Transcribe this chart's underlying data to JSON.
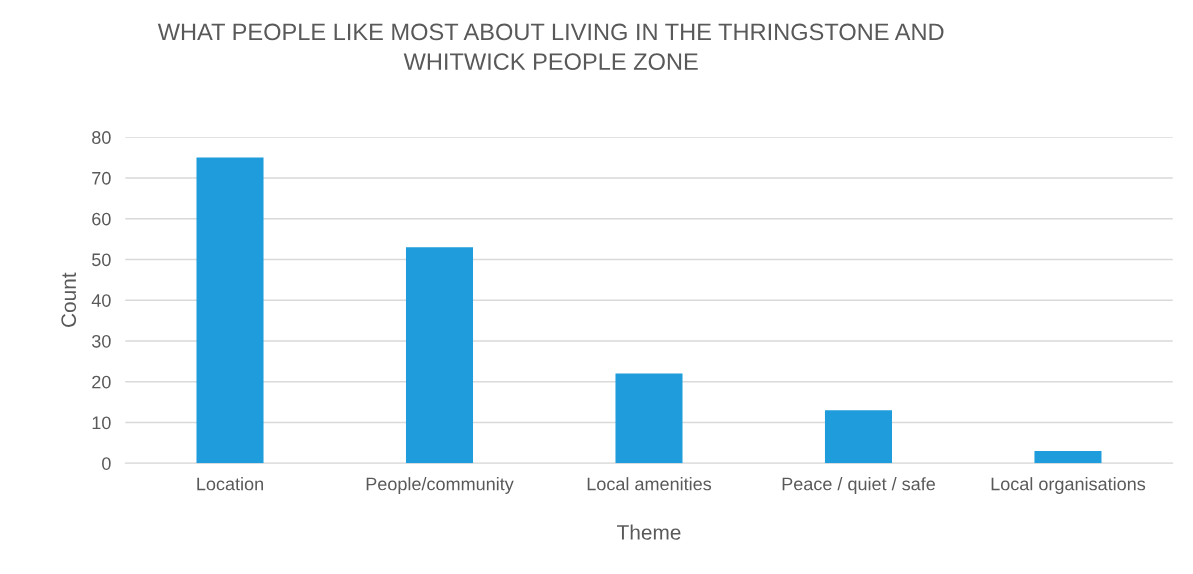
{
  "chart_data": {
    "type": "bar",
    "title": "WHAT PEOPLE LIKE MOST ABOUT LIVING IN THE THRINGSTONE AND\nWHITWICK PEOPLE ZONE",
    "xlabel": "Theme",
    "ylabel": "Count",
    "categories": [
      "Location",
      "People/community",
      "Local amenities",
      "Peace / quiet / safe",
      "Local organisations"
    ],
    "values": [
      75,
      53,
      22,
      13,
      3
    ],
    "color": "#1f9cdb",
    "ylim": [
      0,
      80
    ],
    "yticks": [
      0,
      10,
      20,
      30,
      40,
      50,
      60,
      70,
      80
    ],
    "grid": "y",
    "legend": false
  }
}
